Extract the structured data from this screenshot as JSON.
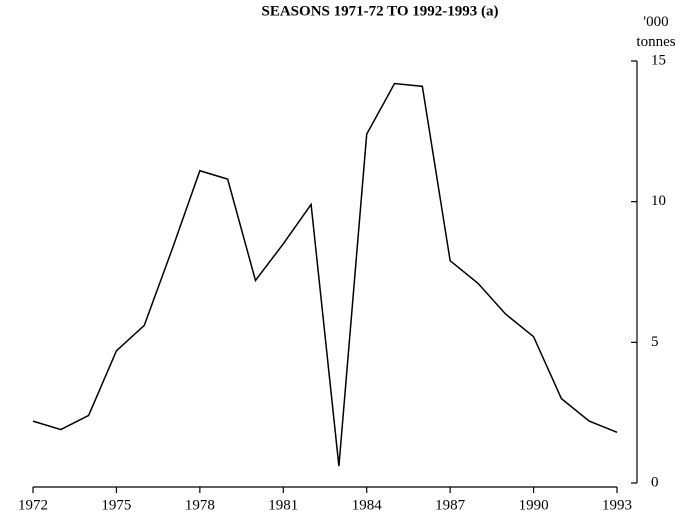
{
  "chart_data": {
    "type": "line",
    "title": "SEASONS 1971-72 TO 1992-1993 (a)",
    "ylabel": "'000 tonnes",
    "x": [
      1972,
      1973,
      1974,
      1975,
      1976,
      1977,
      1978,
      1979,
      1980,
      1981,
      1982,
      1983,
      1984,
      1985,
      1986,
      1987,
      1988,
      1989,
      1990,
      1991,
      1992,
      1993
    ],
    "series": [
      {
        "color": "#000000",
        "values": [
          2.2,
          1.9,
          2.4,
          4.7,
          5.6,
          8.3,
          11.1,
          10.8,
          7.2,
          8.5,
          9.9,
          0.6,
          12.4,
          14.2,
          14.1,
          7.9,
          7.1,
          6.0,
          5.2,
          3.0,
          2.2,
          1.8
        ]
      }
    ],
    "xlim": [
      1972,
      1993
    ],
    "xticks": [
      1972,
      1975,
      1978,
      1981,
      1984,
      1987,
      1990,
      1993
    ],
    "ylim": [
      0,
      15
    ],
    "yticks": [
      0,
      5,
      10,
      15
    ],
    "grid": false
  }
}
